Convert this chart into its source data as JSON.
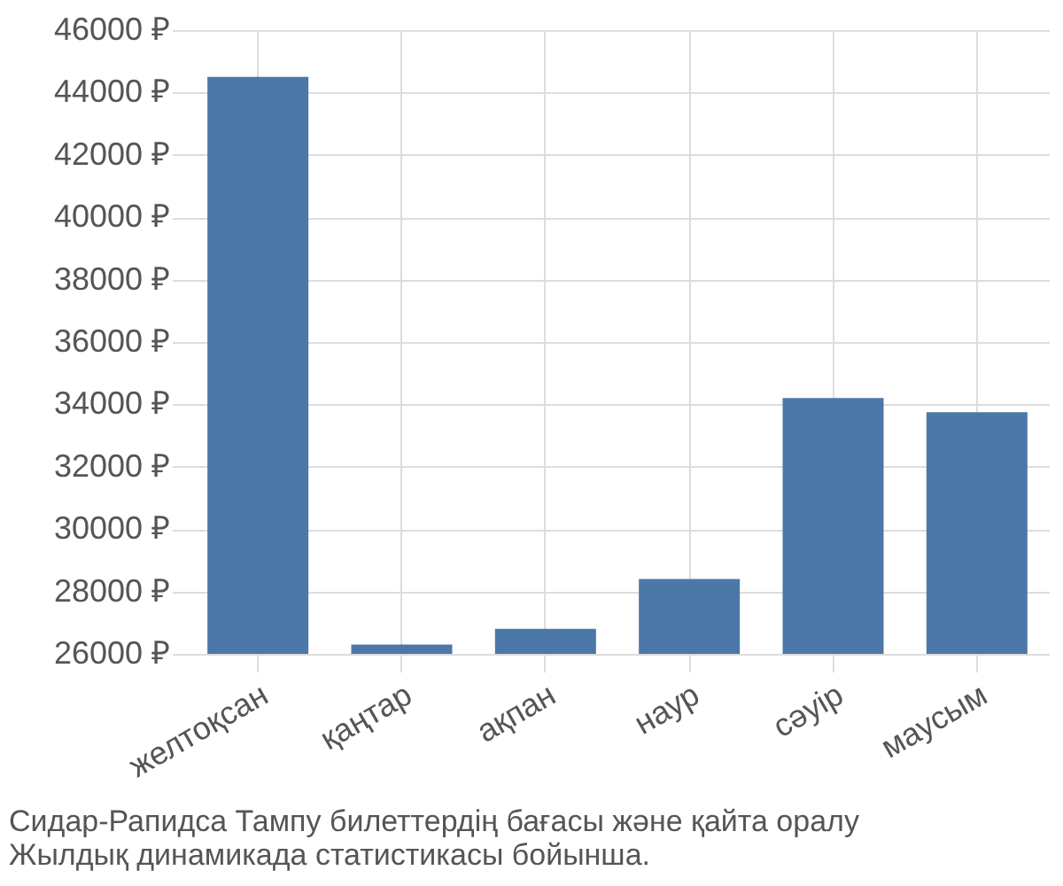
{
  "chart_data": {
    "type": "bar",
    "categories": [
      "желтоқсан",
      "қаңтар",
      "ақпан",
      "наур",
      "сәуір",
      "маусым"
    ],
    "values": [
      44500,
      26300,
      26800,
      28400,
      34200,
      33750
    ],
    "color": "#4c78a8",
    "ylim": [
      26000,
      46000
    ],
    "yticks": [
      {
        "value": 26000,
        "label": "26000 ₽"
      },
      {
        "value": 28000,
        "label": "28000 ₽"
      },
      {
        "value": 30000,
        "label": "30000 ₽"
      },
      {
        "value": 32000,
        "label": "32000 ₽"
      },
      {
        "value": 34000,
        "label": "34000 ₽"
      },
      {
        "value": 36000,
        "label": "36000 ₽"
      },
      {
        "value": 38000,
        "label": "38000 ₽"
      },
      {
        "value": 40000,
        "label": "40000 ₽"
      },
      {
        "value": 42000,
        "label": "42000 ₽"
      },
      {
        "value": 44000,
        "label": "44000 ₽"
      },
      {
        "value": 46000,
        "label": "46000 ₽"
      }
    ],
    "grid": true,
    "annotations": [
      "Сидар-Рапидса Тампу билеттердің бағасы және қайта оралу",
      "Жылдық динамикада статистикасы бойынша."
    ]
  }
}
